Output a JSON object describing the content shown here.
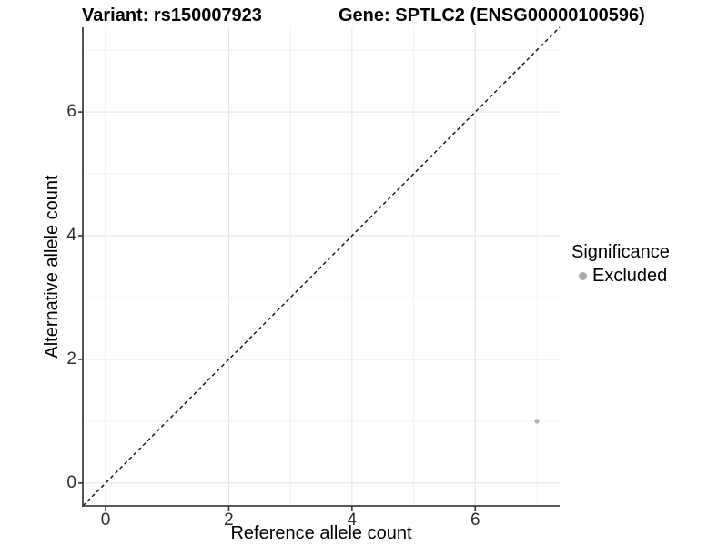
{
  "header": {
    "variant_title": "Variant: rs150007923",
    "gene_title": "Gene: SPTLC2 (ENSG00000100596)"
  },
  "chart_data": {
    "type": "scatter",
    "xlabel": "Reference allele count",
    "ylabel": "Alternative allele count",
    "xlim": [
      -0.37,
      7.37
    ],
    "ylim": [
      -0.37,
      7.37
    ],
    "x_ticks": [
      0,
      2,
      4,
      6
    ],
    "y_ticks": [
      0,
      2,
      4,
      6
    ],
    "grid": {
      "major": [
        0,
        2,
        4,
        6
      ],
      "minor": [
        1,
        3,
        5,
        7
      ],
      "shown": true
    },
    "identity_line": {
      "shown": true,
      "style": "dashed",
      "color": "#101010",
      "from": [
        -0.37,
        -0.37
      ],
      "to": [
        7.37,
        7.37
      ]
    },
    "series": [
      {
        "name": "Excluded",
        "color": "#b3b3b3",
        "points": [
          {
            "x": 7,
            "y": 1
          }
        ]
      }
    ],
    "legend": {
      "title": "Significance",
      "position": "right",
      "items": [
        {
          "label": "Excluded",
          "color": "#acacac"
        }
      ]
    }
  },
  "colors": {
    "background": "#ffffff",
    "grid_major": "#e4e4e4",
    "grid_minor": "#f0f0f0",
    "axis_line": "#424242",
    "tick_mark": "#333333",
    "tick_label": "#2e2e2e",
    "text": "#000000"
  }
}
